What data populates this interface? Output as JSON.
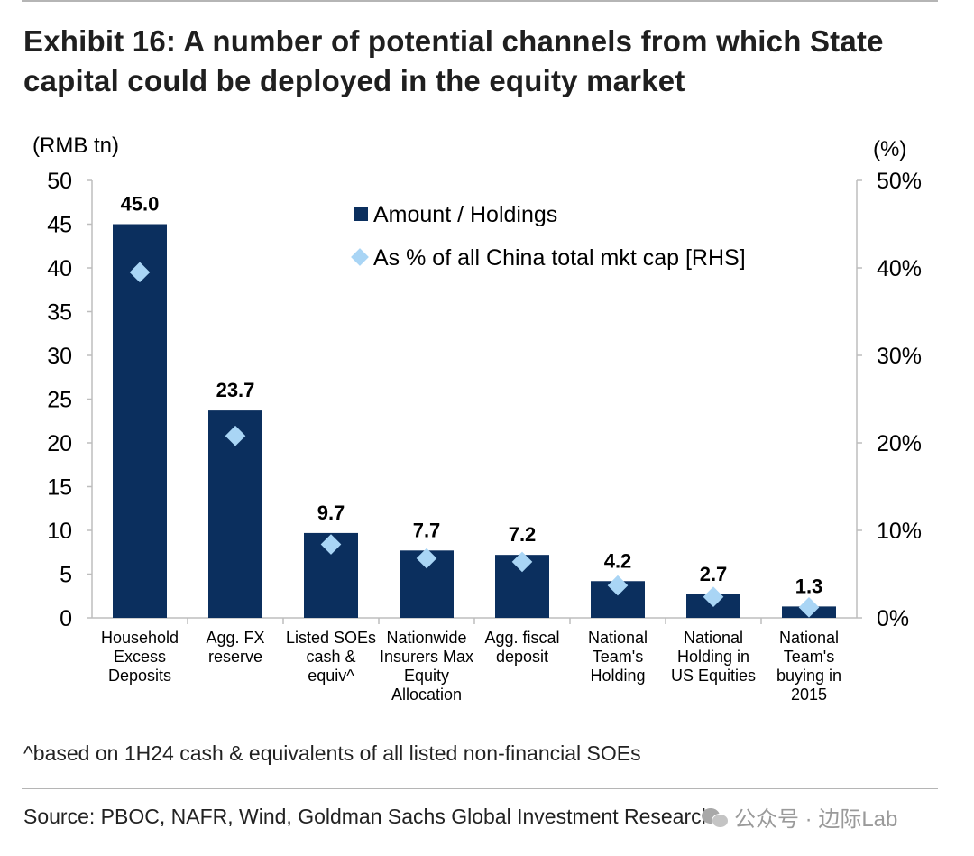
{
  "title": "Exhibit 16: A number of potential channels from which State capital could be deployed in the equity market",
  "footnote": "^based on 1H24 cash & equivalents of all listed non-financial SOEs",
  "source": "Source: PBOC, NAFR, Wind, Goldman Sachs Global Investment Research",
  "watermark": "公众号 · 边际Lab",
  "colors": {
    "bar": "#0b2f5e",
    "marker": "#a9d5f5",
    "grid": "#bdbdbd"
  },
  "chart_data": {
    "type": "bar",
    "categories": [
      [
        "Household",
        "Excess",
        "Deposits"
      ],
      [
        "Agg. FX",
        "reserve"
      ],
      [
        "Listed SOEs",
        "cash &",
        "equiv^"
      ],
      [
        "Nationwide",
        "Insurers Max",
        "Equity",
        "Allocation"
      ],
      [
        "Agg. fiscal",
        "deposit"
      ],
      [
        "National",
        "Team's",
        "Holding"
      ],
      [
        "National",
        "Holding in",
        "US Equities"
      ],
      [
        "National",
        "Team's",
        "buying in",
        "2015"
      ]
    ],
    "series": [
      {
        "name": "Amount / Holdings",
        "axis": "left",
        "values": [
          45.0,
          23.7,
          9.7,
          7.7,
          7.2,
          4.2,
          2.7,
          1.3
        ],
        "data_labels": [
          "45.0",
          "23.7",
          "9.7",
          "7.7",
          "7.2",
          "4.2",
          "2.7",
          "1.3"
        ]
      },
      {
        "name": "As % of all China total mkt cap [RHS]",
        "axis": "right",
        "values": [
          39.5,
          20.8,
          8.4,
          6.8,
          6.4,
          3.7,
          2.4,
          1.2
        ]
      }
    ],
    "ylabel_left": "(RMB tn)",
    "ylabel_right": "(%)",
    "ylim_left": [
      0,
      50
    ],
    "ylim_right": [
      0,
      50
    ],
    "yticks_left": [
      "0",
      "5",
      "10",
      "15",
      "20",
      "25",
      "30",
      "35",
      "40",
      "45",
      "50"
    ],
    "yticks_right": [
      "0%",
      "10%",
      "20%",
      "30%",
      "40%",
      "50%"
    ],
    "legend": "top-center",
    "grid": false
  }
}
